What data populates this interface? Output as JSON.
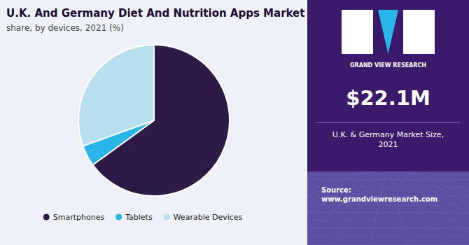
{
  "chart_data": {
    "type": "pie",
    "title": "U.K. And Germany Diet And Nutrition Apps Market",
    "subtitle": "share, by devices, 2021 (%)",
    "categories": [
      "Smartphones",
      "Tablets",
      "Wearable Devices"
    ],
    "values": [
      65.0,
      4.5,
      30.5
    ],
    "colors": [
      "#2e1a47",
      "#29b5e8",
      "#b8dff0"
    ],
    "legend": "bottom",
    "annotations": [
      "GRAND VIEW RESEARCH",
      "$22.1M",
      "U.K. & Germany Market Size,\n2021",
      "Source:\nwww.grandviewresearch.com"
    ]
  }
}
